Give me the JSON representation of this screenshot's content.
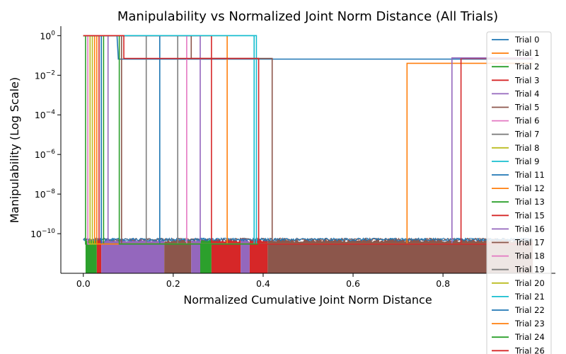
{
  "chart_data": {
    "type": "line",
    "title": "Manipulability vs Normalized Joint Norm Distance (All Trials)",
    "xlabel": "Normalized Cumulative Joint Norm Distance",
    "ylabel": "Manipulability (Log Scale)",
    "xlim": [
      -0.05,
      1.05
    ],
    "ylim": [
      1e-12,
      3
    ],
    "yscale": "log",
    "grid": false,
    "legend_position": "top-right",
    "x_ticks": [
      {
        "value": 0.0,
        "label": "0.0"
      },
      {
        "value": 0.2,
        "label": "0.2"
      },
      {
        "value": 0.4,
        "label": "0.4"
      },
      {
        "value": 0.6,
        "label": "0.6"
      },
      {
        "value": 0.8,
        "label": "0.8"
      }
    ],
    "y_ticks": [
      {
        "value": 1,
        "base": "10",
        "exp": "0"
      },
      {
        "value": 0.01,
        "base": "10",
        "exp": "−2"
      },
      {
        "value": 0.0001,
        "base": "10",
        "exp": "−4"
      },
      {
        "value": 1e-06,
        "base": "10",
        "exp": "−6"
      },
      {
        "value": 1e-08,
        "base": "10",
        "exp": "−8"
      },
      {
        "value": 1e-10,
        "base": "10",
        "exp": "−10"
      }
    ],
    "noise_floor": {
      "min": 2e-12,
      "max": 6e-11
    },
    "series": [
      {
        "name": "Trial 0",
        "color": "#1f77b4",
        "points": [
          [
            0.0,
            1
          ],
          [
            0.075,
            1
          ],
          [
            0.078,
            0.065
          ],
          [
            1.0,
            0.065
          ]
        ]
      },
      {
        "name": "Trial 1",
        "color": "#ff7f0e",
        "points": [
          [
            0.0,
            1
          ],
          [
            0.32,
            1
          ],
          [
            0.32,
            3e-11
          ],
          [
            1.0,
            3e-11
          ]
        ]
      },
      {
        "name": "Trial 2",
        "color": "#2ca02c",
        "points": [
          [
            0.0,
            1
          ],
          [
            0.005,
            1
          ],
          [
            0.005,
            3e-11
          ],
          [
            1.0,
            3e-11
          ]
        ]
      },
      {
        "name": "Trial 3",
        "color": "#d62728",
        "points": [
          [
            0.0,
            1
          ],
          [
            0.035,
            1
          ],
          [
            0.035,
            3e-11
          ],
          [
            1.0,
            3e-11
          ]
        ]
      },
      {
        "name": "Trial 4",
        "color": "#9467bd",
        "points": [
          [
            0.0,
            1
          ],
          [
            0.055,
            1
          ],
          [
            0.055,
            3e-11
          ],
          [
            1.0,
            3e-11
          ]
        ]
      },
      {
        "name": "Trial 5",
        "color": "#8c564b",
        "points": [
          [
            0.0,
            1
          ],
          [
            0.085,
            1
          ],
          [
            0.085,
            3e-11
          ],
          [
            1.0,
            3e-11
          ]
        ]
      },
      {
        "name": "Trial 6",
        "color": "#e377c2",
        "points": [
          [
            0.0,
            1
          ],
          [
            0.01,
            1
          ],
          [
            0.01,
            3e-11
          ],
          [
            1.0,
            3e-11
          ]
        ]
      },
      {
        "name": "Trial 7",
        "color": "#7f7f7f",
        "points": [
          [
            0.0,
            1
          ],
          [
            0.14,
            1
          ],
          [
            0.14,
            3e-11
          ],
          [
            1.0,
            3e-11
          ]
        ]
      },
      {
        "name": "Trial 8",
        "color": "#bcbd22",
        "points": [
          [
            0.0,
            1
          ],
          [
            0.02,
            1
          ],
          [
            0.02,
            3e-11
          ],
          [
            1.0,
            3e-11
          ]
        ]
      },
      {
        "name": "Trial 9",
        "color": "#17becf",
        "points": [
          [
            0.0,
            1
          ],
          [
            0.385,
            1
          ],
          [
            0.385,
            3e-11
          ],
          [
            1.0,
            3e-11
          ]
        ]
      },
      {
        "name": "Trial 11",
        "color": "#1f77b4",
        "points": [
          [
            0.0,
            1
          ],
          [
            0.17,
            1
          ],
          [
            0.17,
            3e-11
          ],
          [
            1.0,
            3e-11
          ]
        ]
      },
      {
        "name": "Trial 12",
        "color": "#ff7f0e",
        "points": [
          [
            0.0,
            1
          ],
          [
            0.025,
            1
          ],
          [
            0.025,
            3e-11
          ],
          [
            0.72,
            3e-11
          ],
          [
            0.72,
            0.04
          ],
          [
            1.0,
            0.04
          ]
        ]
      },
      {
        "name": "Trial 13",
        "color": "#2ca02c",
        "points": [
          [
            0.0,
            1
          ],
          [
            0.045,
            1
          ],
          [
            0.045,
            3e-11
          ],
          [
            1.0,
            3e-11
          ]
        ]
      },
      {
        "name": "Trial 15",
        "color": "#d62728",
        "points": [
          [
            0.0,
            1
          ],
          [
            0.285,
            1
          ],
          [
            0.285,
            3e-11
          ],
          [
            0.84,
            3e-11
          ],
          [
            0.84,
            0.07
          ],
          [
            1.0,
            0.07
          ]
        ]
      },
      {
        "name": "Trial 16",
        "color": "#9467bd",
        "points": [
          [
            0.0,
            1
          ],
          [
            0.26,
            1
          ],
          [
            0.26,
            3e-11
          ],
          [
            0.82,
            3e-11
          ],
          [
            0.82,
            0.075
          ],
          [
            1.0,
            0.075
          ]
        ]
      },
      {
        "name": "Trial 17",
        "color": "#8c564b",
        "points": [
          [
            0.0,
            1
          ],
          [
            0.24,
            1
          ],
          [
            0.24,
            0.07
          ],
          [
            0.42,
            0.07
          ],
          [
            0.42,
            3e-11
          ],
          [
            1.0,
            3e-11
          ]
        ]
      },
      {
        "name": "Trial 18",
        "color": "#e377c2",
        "points": [
          [
            0.0,
            1
          ],
          [
            0.23,
            1
          ],
          [
            0.23,
            3e-11
          ],
          [
            1.0,
            3e-11
          ]
        ]
      },
      {
        "name": "Trial 19",
        "color": "#7f7f7f",
        "points": [
          [
            0.0,
            1
          ],
          [
            0.21,
            1
          ],
          [
            0.21,
            3e-11
          ],
          [
            1.0,
            3e-11
          ]
        ]
      },
      {
        "name": "Trial 20",
        "color": "#bcbd22",
        "points": [
          [
            0.0,
            1
          ],
          [
            0.015,
            1
          ],
          [
            0.015,
            3e-11
          ],
          [
            1.0,
            3e-11
          ]
        ]
      },
      {
        "name": "Trial 21",
        "color": "#17becf",
        "points": [
          [
            0.0,
            1
          ],
          [
            0.38,
            1
          ],
          [
            0.38,
            3e-11
          ],
          [
            1.0,
            3e-11
          ]
        ]
      },
      {
        "name": "Trial 22",
        "color": "#1f77b4",
        "points": [
          [
            0.0,
            1
          ],
          [
            0.04,
            1
          ],
          [
            0.04,
            3e-11
          ],
          [
            1.0,
            3e-11
          ]
        ]
      },
      {
        "name": "Trial 23",
        "color": "#ff7f0e",
        "points": [
          [
            0.0,
            1
          ],
          [
            0.03,
            1
          ],
          [
            0.03,
            3e-11
          ],
          [
            1.0,
            3e-11
          ]
        ]
      },
      {
        "name": "Trial 24",
        "color": "#2ca02c",
        "points": [
          [
            0.0,
            1
          ],
          [
            0.08,
            1
          ],
          [
            0.08,
            3e-11
          ],
          [
            1.0,
            3e-11
          ]
        ]
      },
      {
        "name": "Trial 26",
        "color": "#d62728",
        "points": [
          [
            0.0,
            1
          ],
          [
            0.09,
            1
          ],
          [
            0.09,
            0.07
          ],
          [
            0.39,
            0.07
          ],
          [
            0.39,
            3e-11
          ],
          [
            1.0,
            3e-11
          ]
        ]
      }
    ],
    "fill_regions": [
      {
        "color": "#2ca02c",
        "x": [
          0.005,
          0.03
        ]
      },
      {
        "color": "#d62728",
        "x": [
          0.03,
          0.04
        ]
      },
      {
        "color": "#9467bd",
        "x": [
          0.04,
          0.18
        ]
      },
      {
        "color": "#8c564b",
        "x": [
          0.18,
          0.24
        ]
      },
      {
        "color": "#9467bd",
        "x": [
          0.24,
          0.26
        ]
      },
      {
        "color": "#2ca02c",
        "x": [
          0.26,
          0.285
        ]
      },
      {
        "color": "#d62728",
        "x": [
          0.285,
          0.35
        ]
      },
      {
        "color": "#9467bd",
        "x": [
          0.35,
          0.37
        ]
      },
      {
        "color": "#d62728",
        "x": [
          0.37,
          0.41
        ]
      },
      {
        "color": "#8c564b",
        "x": [
          0.41,
          1.0
        ]
      }
    ]
  }
}
